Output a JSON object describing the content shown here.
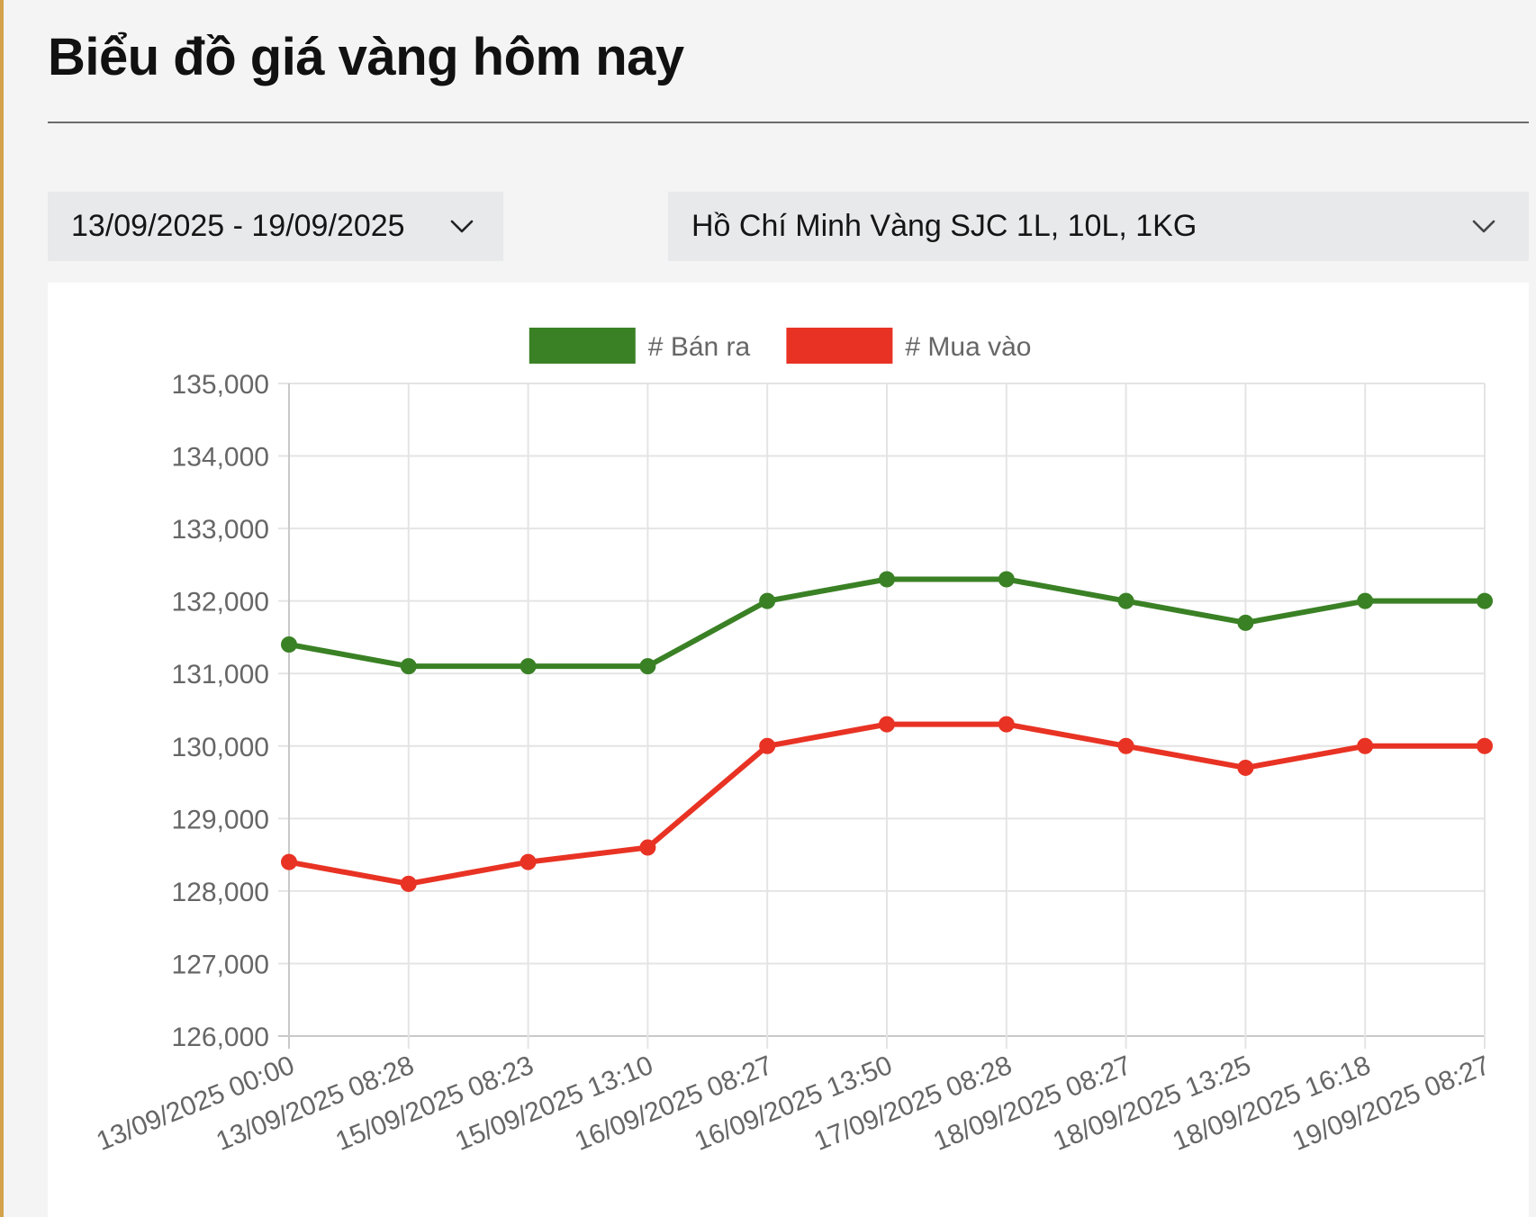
{
  "page": {
    "title": "Biểu đồ giá vàng hôm nay"
  },
  "filters": {
    "date_range": "13/09/2025 - 19/09/2025",
    "product": "Hồ Chí Minh Vàng SJC 1L, 10L, 1KG"
  },
  "icons": {
    "dropdown": "chevron-down-icon"
  },
  "chart_data": {
    "type": "line",
    "title": "",
    "xlabel": "",
    "ylabel": "",
    "categories": [
      "13/09/2025 00:00",
      "13/09/2025 08:28",
      "15/09/2025 08:23",
      "15/09/2025 13:10",
      "16/09/2025 08:27",
      "16/09/2025 13:50",
      "17/09/2025 08:28",
      "18/09/2025 08:27",
      "18/09/2025 13:25",
      "18/09/2025 16:18",
      "19/09/2025 08:27"
    ],
    "series": [
      {
        "name": "# Bán ra",
        "color": "#3a8125",
        "values": [
          131400,
          131100,
          131100,
          131100,
          132000,
          132300,
          132300,
          132000,
          131700,
          132000,
          132000
        ]
      },
      {
        "name": "# Mua vào",
        "color": "#e83324",
        "values": [
          128400,
          128100,
          128400,
          128600,
          130000,
          130300,
          130300,
          130000,
          129700,
          130000,
          130000
        ]
      }
    ],
    "ylim": [
      126000,
      135000
    ],
    "yticks": [
      "126,000",
      "127,000",
      "128,000",
      "129,000",
      "130,000",
      "131,000",
      "132,000",
      "133,000",
      "134,000",
      "135,000"
    ],
    "grid": true,
    "legend_position": "top-center"
  }
}
